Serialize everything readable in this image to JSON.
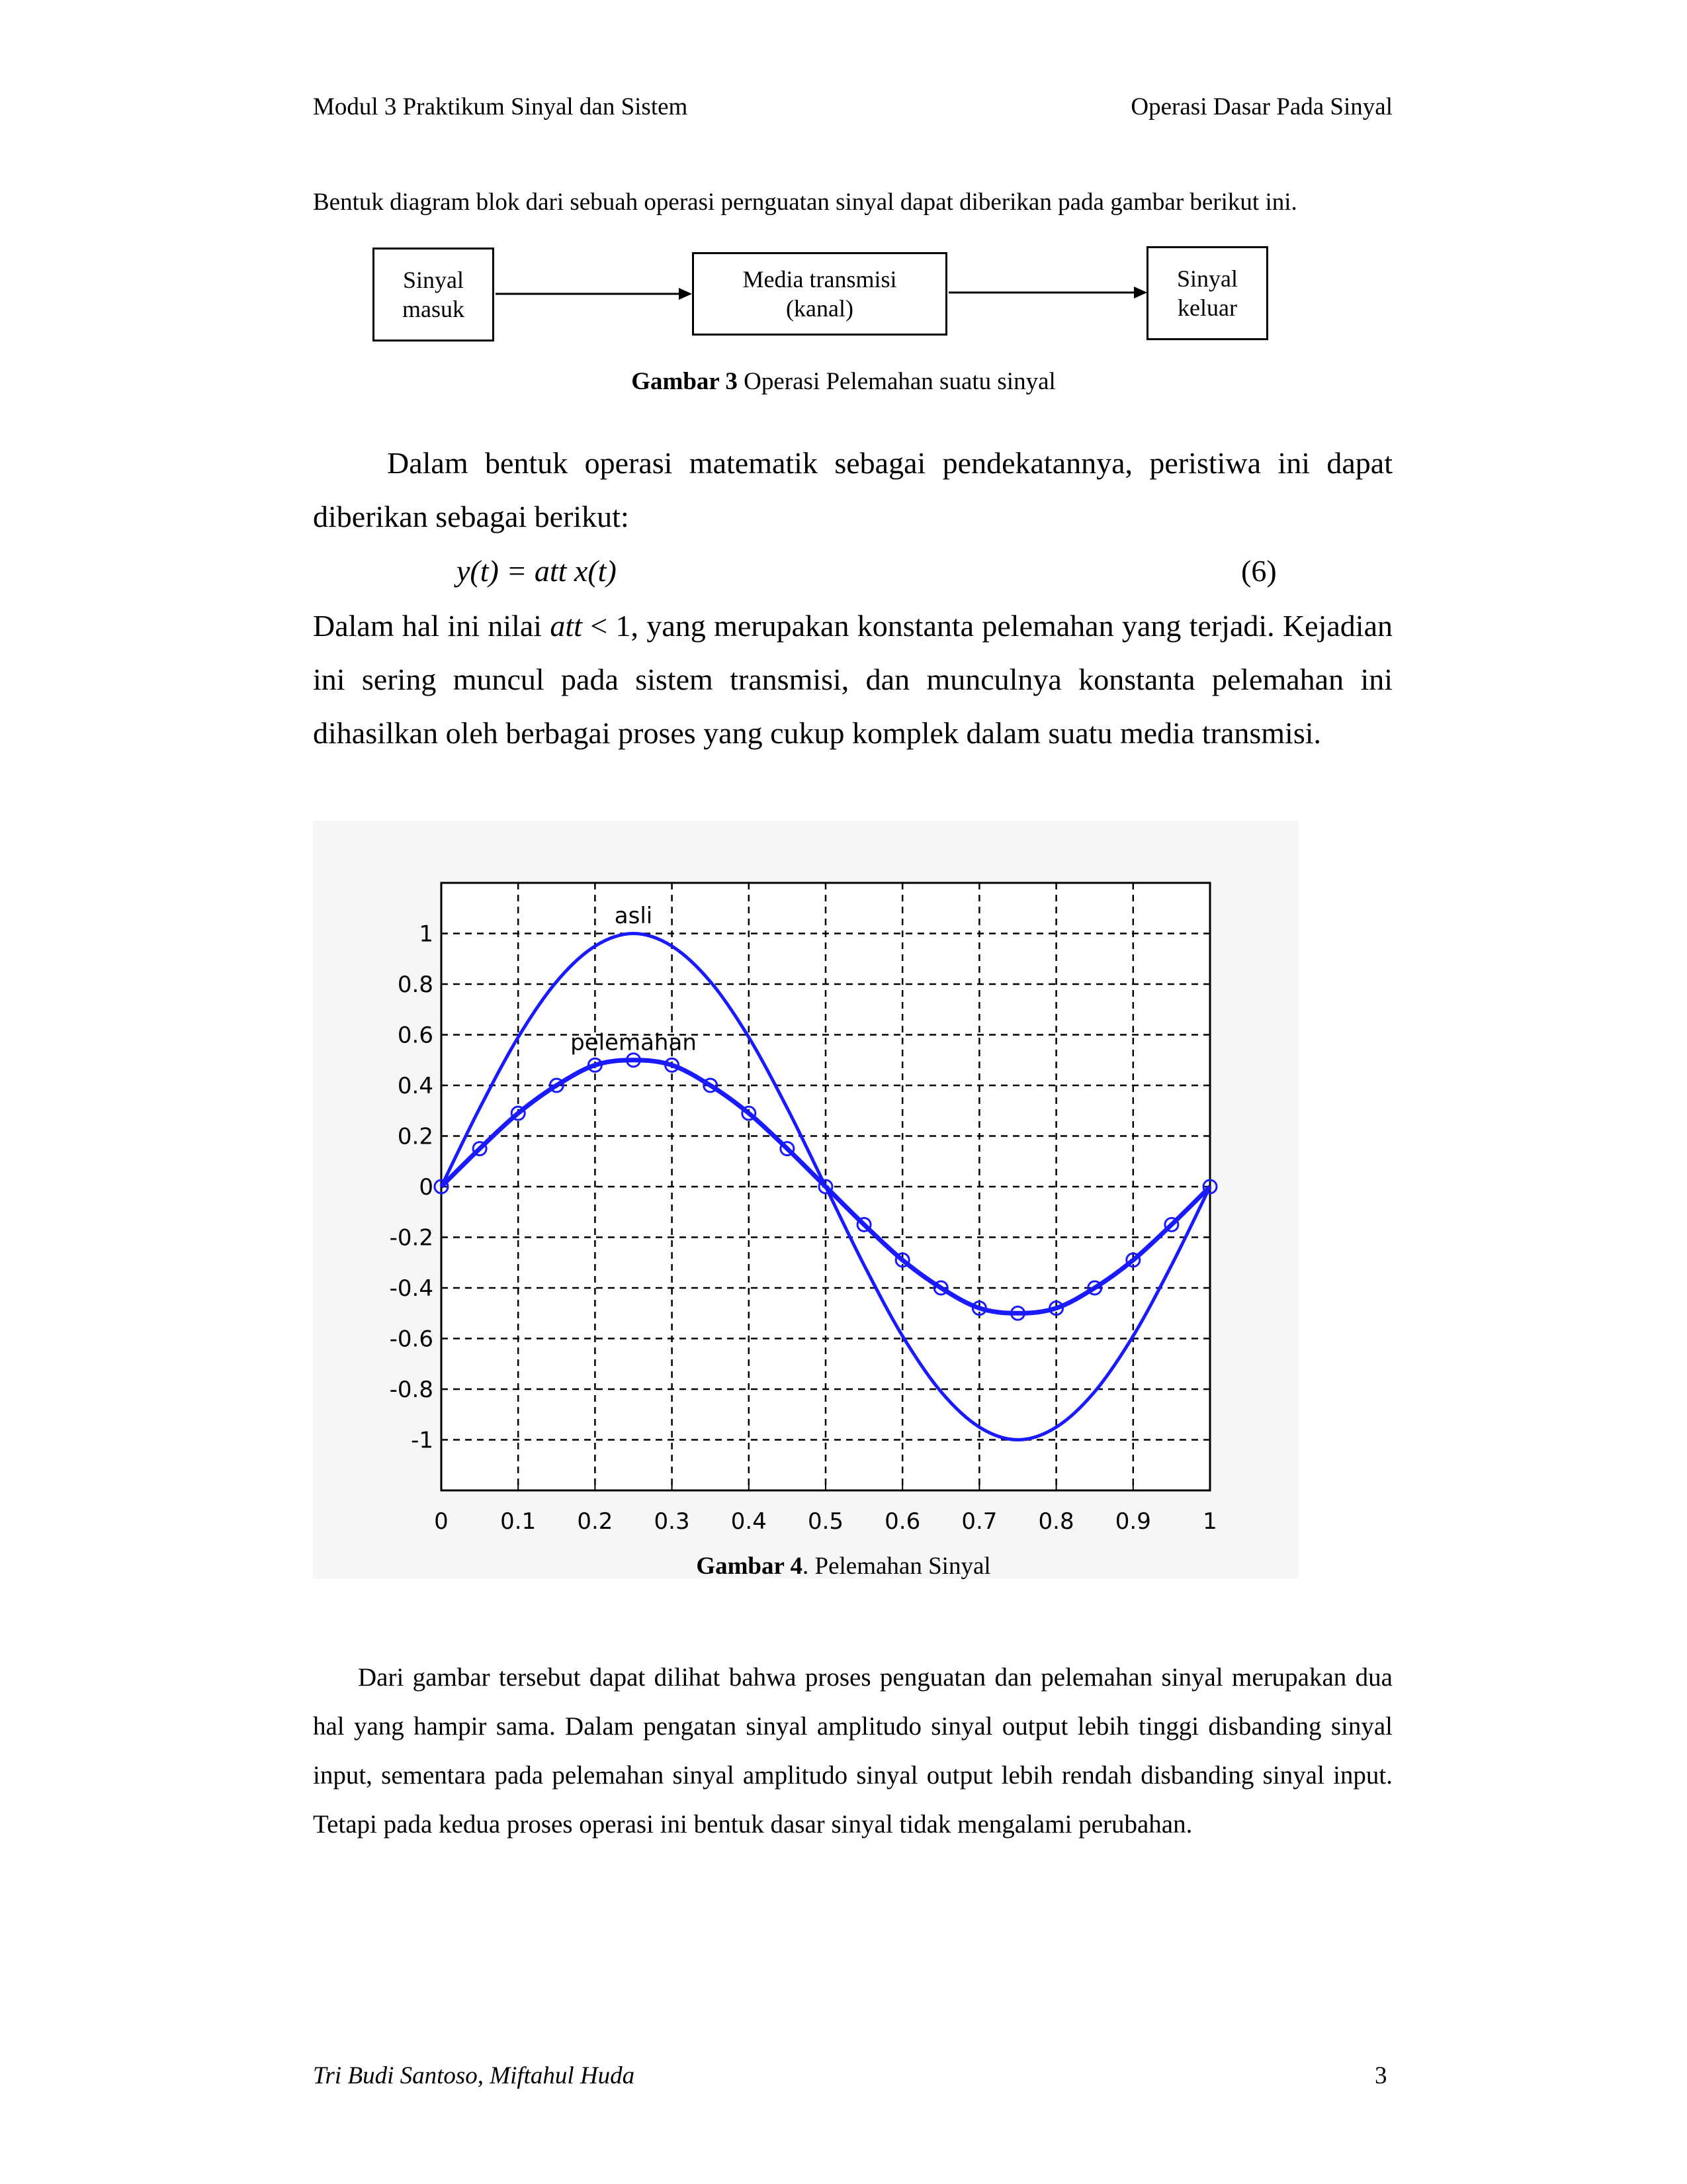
{
  "header": {
    "left": "Modul 3 Praktikum Sinyal dan Sistem",
    "right": "Operasi Dasar Pada Sinyal"
  },
  "intro_text": "Bentuk diagram blok dari sebuah operasi pernguatan sinyal dapat diberikan pada gambar berikut ini.",
  "block_diagram": {
    "input": [
      "Sinyal",
      "masuk"
    ],
    "channel": [
      "Media transmisi",
      "(kanal)"
    ],
    "output": [
      "Sinyal",
      "keluar"
    ]
  },
  "figure3_caption": {
    "label": "Gambar 3",
    "text": " Operasi Pelemahan suatu sinyal"
  },
  "paragraph1": "Dalam bentuk operasi matematik sebagai pendekatannya, peristiwa ini dapat diberikan sebagai berikut:",
  "equation": {
    "expr": "y(t) =  att x(t)",
    "number": "(6)"
  },
  "paragraph2": {
    "before": "Dalam hal ini nilai ",
    "var": "att",
    "after": " < 1, yang merupakan konstanta pelemahan yang terjadi. Kejadian ini sering muncul pada sistem transmisi, dan munculnya konstanta pelemahan ini dihasilkan oleh berbagai proses yang cukup komplek dalam suatu media transmisi."
  },
  "chart_data": {
    "type": "line",
    "title": "",
    "xlabel": "",
    "ylabel": "",
    "xlim": [
      0,
      1
    ],
    "ylim": [
      -1.2,
      1.2
    ],
    "xticks": [
      "0",
      "0.1",
      "0.2",
      "0.3",
      "0.4",
      "0.5",
      "0.6",
      "0.7",
      "0.8",
      "0.9",
      "1"
    ],
    "yticks": [
      "1",
      "0.8",
      "0.6",
      "0.4",
      "0.2",
      "0",
      "-0.2",
      "-0.4",
      "-0.6",
      "-0.8",
      "-1"
    ],
    "grid": true,
    "color": "#1a1aff",
    "x": [
      0,
      0.05,
      0.1,
      0.15,
      0.2,
      0.25,
      0.3,
      0.35,
      0.4,
      0.45,
      0.5,
      0.55,
      0.6,
      0.65,
      0.7,
      0.75,
      0.8,
      0.85,
      0.9,
      0.95,
      1
    ],
    "series": [
      {
        "name": "asli",
        "values": [
          0,
          0.31,
          0.59,
          0.81,
          0.95,
          1,
          0.95,
          0.81,
          0.59,
          0.31,
          0,
          -0.31,
          -0.59,
          -0.81,
          -0.95,
          -1,
          -0.95,
          -0.81,
          -0.59,
          -0.31,
          0
        ]
      },
      {
        "name": "pelemahan",
        "values": [
          0,
          0.15,
          0.29,
          0.4,
          0.48,
          0.5,
          0.48,
          0.4,
          0.29,
          0.15,
          0,
          -0.15,
          -0.29,
          -0.4,
          -0.48,
          -0.5,
          -0.48,
          -0.4,
          -0.29,
          -0.15,
          0
        ]
      }
    ],
    "annotations": [
      {
        "text": "asli",
        "x": 0.25,
        "y": 1.04
      },
      {
        "text": "pelemahan",
        "x": 0.25,
        "y": 0.54
      }
    ]
  },
  "figure4_caption": {
    "label": "Gambar 4",
    "text": ". Pelemahan Sinyal"
  },
  "paragraph3": "Dari gambar tersebut dapat dilihat bahwa proses penguatan dan pelemahan sinyal merupakan dua hal yang hampir sama. Dalam pengatan sinyal amplitudo sinyal output lebih tinggi disbanding sinyal input, sementara pada pelemahan sinyal amplitudo sinyal output lebih rendah disbanding sinyal input. Tetapi pada kedua proses operasi ini bentuk dasar sinyal tidak mengalami perubahan.",
  "footer": {
    "authors": "Tri Budi Santoso, Miftahul Huda",
    "page": "3"
  }
}
